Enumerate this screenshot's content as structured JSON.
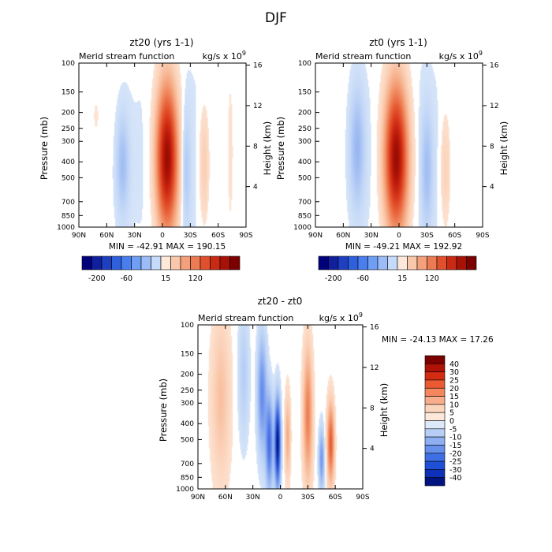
{
  "figure": {
    "title": "DJF"
  },
  "levels_pressure": [
    100,
    150,
    200,
    250,
    300,
    400,
    500,
    700,
    850,
    1000
  ],
  "height_ticks": [
    "4",
    "8",
    "12",
    "16"
  ],
  "chart_data": [
    {
      "type": "heatmap",
      "id": "zt20",
      "title": "zt20 (yrs 1-1)",
      "subtitle": "Merid stream function",
      "units": "kg/s x 10",
      "units_exponent": "9",
      "xlabel": "",
      "ylabel": "Pressure (mb)",
      "ylabel_right": "Height (km)",
      "x_ticks": [
        "90N",
        "60N",
        "30N",
        "0",
        "30S",
        "60S",
        "90S"
      ],
      "y_ticks": [
        "100",
        "150",
        "200",
        "250",
        "300",
        "400",
        "500",
        "700",
        "850",
        "1000"
      ],
      "y_scale": "log",
      "ylim": [
        1000,
        100
      ],
      "stats": "MIN = -42.91   MAX = 190.15",
      "min": -42.91,
      "max": 190.15,
      "colorbar": {
        "orientation": "horizontal",
        "labels": [
          "-200",
          "-60",
          "15",
          "120"
        ]
      },
      "features": [
        {
          "lat": -5,
          "p": 430,
          "value": 190.15
        },
        {
          "lat": 43,
          "p": 430,
          "value": -42.91
        },
        {
          "lat": -25,
          "p": 460,
          "value": -35
        },
        {
          "lat": -45,
          "p": 470,
          "value": 35
        }
      ]
    },
    {
      "type": "heatmap",
      "id": "zt0",
      "title": "zt0 (yrs 1-1)",
      "subtitle": "Merid stream function",
      "units": "kg/s x 10",
      "units_exponent": "9",
      "xlabel": "",
      "ylabel": "Pressure (mb)",
      "ylabel_right": "Height (km)",
      "x_ticks": [
        "90N",
        "60N",
        "30N",
        "0",
        "30S",
        "60S",
        "90S"
      ],
      "y_ticks": [
        "100",
        "150",
        "200",
        "250",
        "300",
        "400",
        "500",
        "700",
        "850",
        "1000"
      ],
      "y_scale": "log",
      "ylim": [
        1000,
        100
      ],
      "stats": "MIN = -49.21   MAX = 192.92",
      "min": -49.21,
      "max": 192.92,
      "colorbar": {
        "orientation": "horizontal",
        "labels": [
          "-200",
          "-60",
          "15",
          "120"
        ]
      },
      "features": [
        {
          "lat": 3,
          "p": 440,
          "value": 192.92
        },
        {
          "lat": 45,
          "p": 400,
          "value": -49.21
        },
        {
          "lat": -30,
          "p": 470,
          "value": -40
        },
        {
          "lat": -50,
          "p": 470,
          "value": 30
        }
      ]
    },
    {
      "type": "heatmap",
      "id": "diff",
      "title": "zt20 - zt0",
      "subtitle": "Merid stream function",
      "units": "kg/s x 10",
      "units_exponent": "9",
      "xlabel": "",
      "ylabel": "Pressure (mb)",
      "ylabel_right": "Height (km)",
      "x_ticks": [
        "90N",
        "60N",
        "30N",
        "0",
        "30S",
        "60S",
        "90S"
      ],
      "y_ticks": [
        "100",
        "150",
        "200",
        "250",
        "300",
        "400",
        "500",
        "700",
        "850",
        "1000"
      ],
      "y_scale": "log",
      "ylim": [
        1000,
        100
      ],
      "stats": "MIN = -24.13   MAX = 17.26",
      "min": -24.13,
      "max": 17.26,
      "colorbar": {
        "orientation": "vertical",
        "labels": [
          "40",
          "30",
          "25",
          "20",
          "15",
          "10",
          "5",
          "0",
          "-5",
          "-10",
          "-15",
          "-20",
          "-25",
          "-30",
          "-40"
        ]
      },
      "features": [
        {
          "lat": 3,
          "p": 550,
          "value": -24.13
        },
        {
          "lat": -55,
          "p": 600,
          "value": 17.26
        },
        {
          "lat": -30,
          "p": 400,
          "value": 10
        },
        {
          "lat": 20,
          "p": 300,
          "value": -10
        }
      ]
    }
  ],
  "colors": {
    "horizontal_bar": [
      "#00007a",
      "#0f1f9e",
      "#1e3fc0",
      "#2e5fdc",
      "#4a7eee",
      "#6f9ef5",
      "#9bbcf7",
      "#c6dbf9",
      "#fde8d9",
      "#f9c8ac",
      "#f4a07a",
      "#ec7a52",
      "#e0502c",
      "#c92a14",
      "#a81206",
      "#7c0000"
    ],
    "vertical_bar": [
      "#7c0000",
      "#b01207",
      "#d42c13",
      "#eb5a32",
      "#f5865e",
      "#f8ae8c",
      "#fcd5bd",
      "#fde8d9",
      "#dde9f8",
      "#b7cff5",
      "#8eb0f2",
      "#6690ec",
      "#3e6fe4",
      "#1f4fd6",
      "#0d31b8",
      "#00137e"
    ]
  }
}
